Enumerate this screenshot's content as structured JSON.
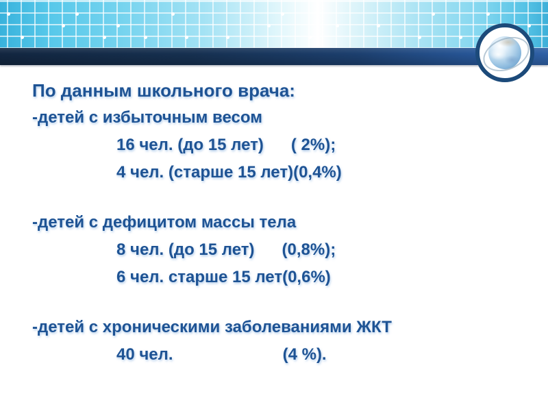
{
  "slide": {
    "title": "По данным школьного врача:",
    "sections": [
      {
        "heading": "-детей с избыточным весом",
        "lines": [
          "16 чел. (до 15 лет)      ( 2%);",
          "4 чел. (старше 15 лет)(0,4%)"
        ]
      },
      {
        "heading": "-детей с дефицитом массы тела",
        "lines": [
          "8 чел. (до 15 лет)      (0,8%);",
          "6 чел. старше 15 лет(0,6%)"
        ]
      },
      {
        "heading": "-детей с хроническими заболеваниями ЖКТ",
        "lines": [
          "40 чел.                        (4 %)."
        ]
      }
    ],
    "logo": {
      "icon": "globe-icon"
    },
    "colors": {
      "text": "#1e5394",
      "bar_gradient_left": "#122640",
      "bar_gradient_right": "#2e60a5",
      "grid_cyan": "#57c8ea",
      "logo_ring": "#1c4a7a"
    }
  }
}
